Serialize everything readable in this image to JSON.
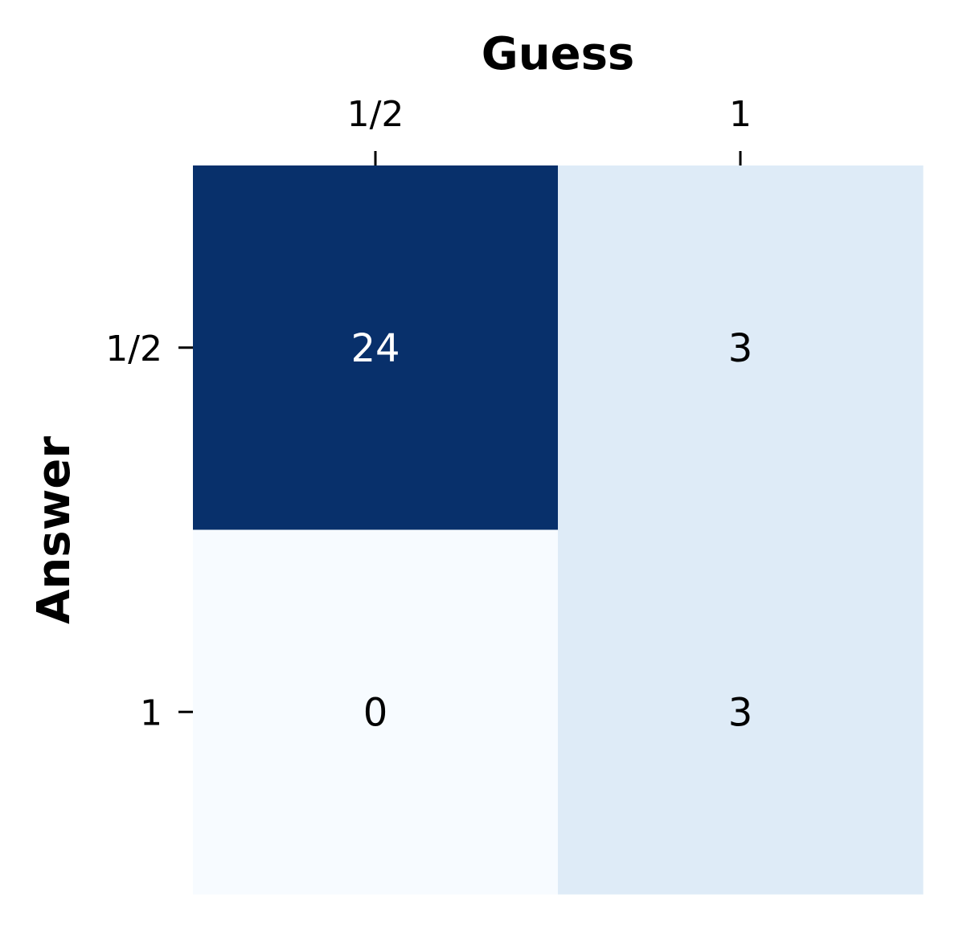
{
  "chart_data": {
    "type": "heatmap",
    "title": "",
    "xlabel": "Guess",
    "ylabel": "Answer",
    "x_categories": [
      "1/2",
      "1"
    ],
    "y_categories": [
      "1/2",
      "1"
    ],
    "values": [
      [
        24,
        3
      ],
      [
        0,
        3
      ]
    ],
    "colormap": "Blues",
    "vmin": 0,
    "vmax": 24,
    "x_axis_position": "top",
    "colorbar": false,
    "annotate": true,
    "colors": {
      "low": "#f7fbff",
      "mid": "#dce9f5",
      "high": "#08306b",
      "text_dark": "#000000",
      "text_light": "#ffffff"
    }
  }
}
